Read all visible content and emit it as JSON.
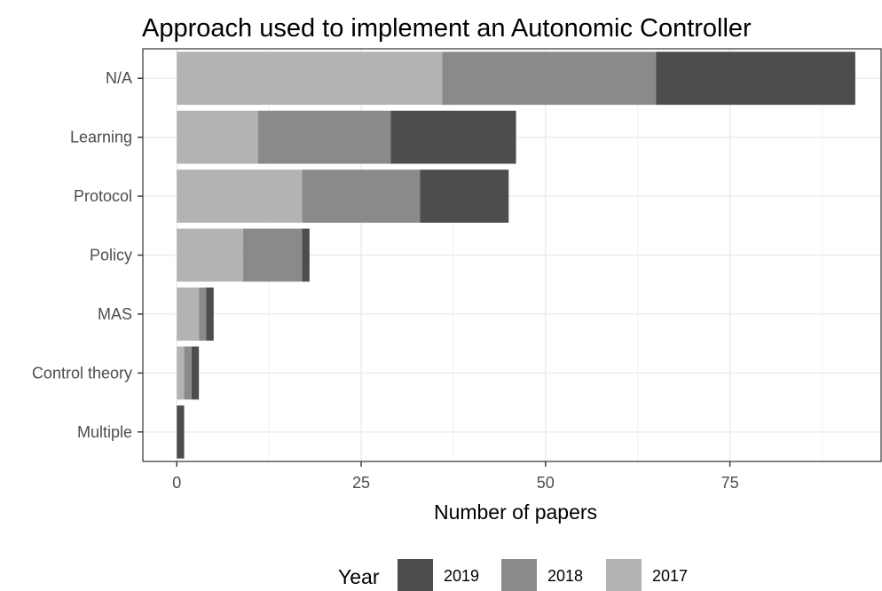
{
  "chart_data": {
    "type": "bar",
    "orientation": "horizontal",
    "stacked": true,
    "title": "Approach used to implement an Autonomic Controller",
    "xlabel": "Number of papers",
    "ylabel": "",
    "categories": [
      "Multiple",
      "Control theory",
      "MAS",
      "Policy",
      "Protocol",
      "Learning",
      "N/A"
    ],
    "series": [
      {
        "name": "2017",
        "color": "#b3b3b3",
        "values": [
          0,
          1,
          3,
          9,
          17,
          11,
          36
        ]
      },
      {
        "name": "2018",
        "color": "#8a8a8a",
        "values": [
          0,
          1,
          1,
          8,
          16,
          18,
          29
        ]
      },
      {
        "name": "2019",
        "color": "#4d4d4d",
        "values": [
          1,
          1,
          1,
          1,
          12,
          17,
          27
        ]
      }
    ],
    "xlim": [
      -4.6,
      95.5
    ],
    "xticks": [
      0,
      25,
      50,
      75
    ],
    "grid": true,
    "legend": {
      "title": "Year",
      "position": "bottom",
      "entries": [
        "2019",
        "2018",
        "2017"
      ]
    }
  }
}
